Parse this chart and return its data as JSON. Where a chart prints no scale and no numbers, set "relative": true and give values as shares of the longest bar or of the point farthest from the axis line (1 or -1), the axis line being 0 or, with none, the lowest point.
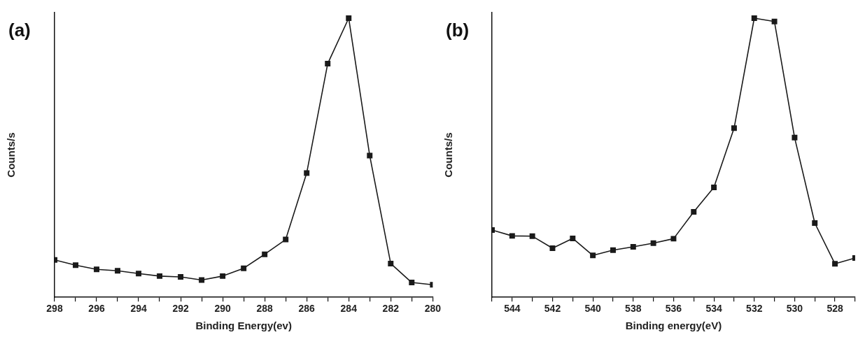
{
  "chart_data": [
    {
      "type": "line",
      "title": "(a)",
      "xlabel": "Binding Energy(ev)",
      "ylabel": "Counts/s",
      "relative": true,
      "marker": "square",
      "line_style": "solid",
      "grid": false,
      "legend": false,
      "x": [
        298,
        297,
        296,
        295,
        294,
        293,
        292,
        291,
        290,
        289,
        288,
        287,
        286,
        285,
        284,
        283,
        282,
        281,
        280
      ],
      "series": [
        {
          "color": "#1a1a1a",
          "values": [
            0.134,
            0.115,
            0.1,
            0.095,
            0.085,
            0.076,
            0.073,
            0.062,
            0.076,
            0.104,
            0.154,
            0.207,
            0.445,
            0.837,
            1,
            0.508,
            0.121,
            0.053,
            0.045
          ]
        }
      ],
      "xlim": [
        298,
        280
      ],
      "xticks": [
        298,
        {
          "value": 297,
          "label": null
        },
        296,
        {
          "value": 295,
          "label": null
        },
        294,
        {
          "value": 293,
          "label": null
        },
        292,
        {
          "value": 291,
          "label": null
        },
        290,
        {
          "value": 289,
          "label": null
        },
        288,
        {
          "value": 287,
          "label": null
        },
        286,
        {
          "value": 285,
          "label": null
        },
        284,
        {
          "value": 283,
          "label": null
        },
        282,
        {
          "value": 281,
          "label": null
        },
        280
      ]
    },
    {
      "type": "line",
      "title": "(b)",
      "xlabel": "Binding energy(eV)",
      "ylabel": "Counts/s",
      "relative": true,
      "marker": "square",
      "line_style": "solid",
      "grid": false,
      "legend": false,
      "x": [
        545,
        544,
        543,
        542,
        541,
        540,
        539,
        538,
        537,
        536,
        535,
        534,
        533,
        532,
        531,
        530,
        529,
        528,
        527
      ],
      "series": [
        {
          "color": "#1a1a1a",
          "values": [
            0.241,
            0.22,
            0.219,
            0.176,
            0.211,
            0.15,
            0.169,
            0.181,
            0.194,
            0.21,
            0.306,
            0.394,
            0.606,
            1,
            0.988,
            0.572,
            0.266,
            0.12,
            0.141
          ]
        }
      ],
      "xlim": [
        545,
        527
      ],
      "xticks": [
        {
          "value": 545,
          "label": null
        },
        544,
        {
          "value": 543,
          "label": null
        },
        542,
        {
          "value": 541,
          "label": null
        },
        540,
        {
          "value": 539,
          "label": null
        },
        538,
        {
          "value": 537,
          "label": null
        },
        536,
        {
          "value": 535,
          "label": null
        },
        534,
        {
          "value": 533,
          "label": null
        },
        532,
        {
          "value": 531,
          "label": null
        },
        530,
        {
          "value": 529,
          "label": null
        },
        528,
        {
          "value": 527,
          "label": null
        }
      ]
    }
  ]
}
